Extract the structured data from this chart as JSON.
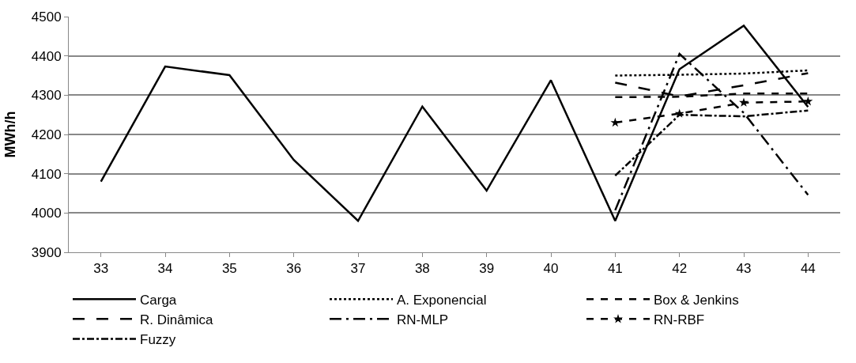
{
  "chart_data": {
    "type": "line",
    "ylabel": "MWh/h",
    "x": [
      33,
      34,
      35,
      36,
      37,
      38,
      39,
      40,
      41,
      42,
      43,
      44
    ],
    "xlim": [
      32.5,
      44.5
    ],
    "xticks": [
      33,
      34,
      35,
      36,
      37,
      38,
      39,
      40,
      41,
      42,
      43,
      44
    ],
    "ylim": [
      3900,
      4500
    ],
    "yticks": [
      3900,
      4000,
      4100,
      4200,
      4300,
      4400,
      4500
    ],
    "grid": "y",
    "legend": "bottom",
    "series": [
      {
        "name": "Carga",
        "color": "#000000",
        "line_style": "solid",
        "values": [
          4080,
          4373,
          4351,
          4135,
          3980,
          4271,
          4057,
          4338,
          3980,
          4366,
          4477,
          4270
        ]
      },
      {
        "name": "A. Exponencial",
        "color": "#000000",
        "line_style": "dotted",
        "x": [
          41,
          42,
          43,
          44
        ],
        "values": [
          4350,
          4352,
          4355,
          4363
        ]
      },
      {
        "name": "Box & Jenkins",
        "color": "#000000",
        "line_style": "dashed",
        "x": [
          41,
          42,
          43,
          44
        ],
        "values": [
          4295,
          4296,
          4304,
          4304
        ]
      },
      {
        "name": "R. Dinâmica",
        "color": "#000000",
        "line_style": "longdash",
        "x": [
          41,
          42,
          43,
          44
        ],
        "values": [
          4332,
          4297,
          4325,
          4356
        ]
      },
      {
        "name": "RN-MLP",
        "color": "#000000",
        "line_style": "longdashdot",
        "x": [
          41,
          42,
          43,
          44
        ],
        "values": [
          4007,
          4405,
          4255,
          4046
        ]
      },
      {
        "name": "RN-RBF",
        "color": "#000000",
        "line_style": "dashed",
        "marker": "star",
        "x": [
          41,
          42,
          43,
          44
        ],
        "values": [
          4230,
          4253,
          4281,
          4284
        ]
      },
      {
        "name": "Fuzzy",
        "color": "#000000",
        "line_style": "dashdot",
        "x": [
          41,
          42,
          43,
          44
        ],
        "values": [
          4095,
          4250,
          4246,
          4261
        ]
      }
    ]
  }
}
